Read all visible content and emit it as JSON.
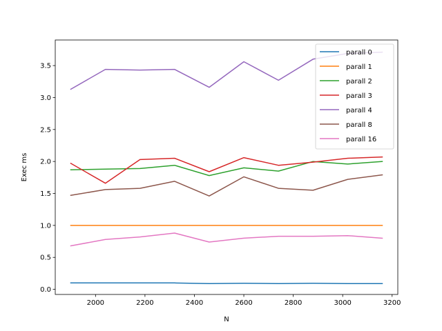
{
  "chart_data": {
    "type": "line",
    "title": "",
    "xlabel": "N",
    "ylabel": "Exec ms",
    "xlim": [
      1837,
      3223
    ],
    "ylim": [
      -0.08,
      3.9
    ],
    "xticks": [
      2000,
      2200,
      2400,
      2600,
      2800,
      3000,
      3200
    ],
    "yticks": [
      0.0,
      0.5,
      1.0,
      1.5,
      2.0,
      2.5,
      3.0,
      3.5
    ],
    "grid": false,
    "legend_position": "top-right",
    "x": [
      1900,
      2040,
      2180,
      2320,
      2460,
      2600,
      2740,
      2880,
      3020,
      3160
    ],
    "series": [
      {
        "name": "parall 0",
        "color": "#1f77b4",
        "values": [
          0.1,
          0.1,
          0.1,
          0.1,
          0.09,
          0.095,
          0.09,
          0.095,
          0.09,
          0.09
        ]
      },
      {
        "name": "parall 1",
        "color": "#ff7f0e",
        "values": [
          1.0,
          1.0,
          1.0,
          1.0,
          1.0,
          1.0,
          1.0,
          1.0,
          1.0,
          1.0
        ]
      },
      {
        "name": "parall 2",
        "color": "#2ca02c",
        "values": [
          1.87,
          1.88,
          1.89,
          1.94,
          1.78,
          1.9,
          1.85,
          2.0,
          1.96,
          2.0
        ]
      },
      {
        "name": "parall 3",
        "color": "#d62728",
        "values": [
          1.97,
          1.66,
          2.03,
          2.05,
          1.84,
          2.06,
          1.94,
          1.99,
          2.05,
          2.07
        ]
      },
      {
        "name": "parall 4",
        "color": "#9467bd",
        "values": [
          3.13,
          3.44,
          3.43,
          3.44,
          3.16,
          3.56,
          3.27,
          3.6,
          3.69,
          3.71
        ]
      },
      {
        "name": "parall 8",
        "color": "#8c564b",
        "values": [
          1.47,
          1.56,
          1.58,
          1.69,
          1.46,
          1.76,
          1.58,
          1.55,
          1.72,
          1.79
        ]
      },
      {
        "name": "parall 16",
        "color": "#e377c2",
        "values": [
          0.68,
          0.78,
          0.82,
          0.88,
          0.74,
          0.8,
          0.83,
          0.83,
          0.84,
          0.8
        ]
      }
    ]
  }
}
